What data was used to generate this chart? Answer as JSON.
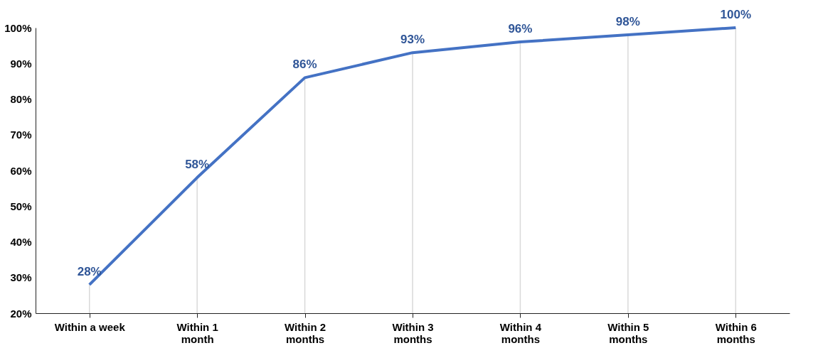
{
  "chart_data": {
    "type": "line",
    "categories": [
      "Within a week",
      "Within 1 month",
      "Within 2 months",
      "Within 3 months",
      "Within 4 months",
      "Within 5 months",
      "Within 6 months"
    ],
    "series": [
      {
        "color": "#4472c4",
        "values": [
          28,
          58,
          86,
          93,
          96,
          98,
          100
        ],
        "value_labels": [
          "28%",
          "58%",
          "86%",
          "93%",
          "96%",
          "98%",
          "100%"
        ]
      }
    ],
    "ylim": [
      20,
      100
    ],
    "yticks": [
      {
        "value": 20,
        "label": "20%"
      },
      {
        "value": 30,
        "label": "30%"
      },
      {
        "value": 40,
        "label": "40%"
      },
      {
        "value": 50,
        "label": "50%"
      },
      {
        "value": 60,
        "label": "60%"
      },
      {
        "value": 70,
        "label": "70%"
      },
      {
        "value": 80,
        "label": "80%"
      },
      {
        "value": 90,
        "label": "90%"
      },
      {
        "value": 100,
        "label": "100%"
      }
    ],
    "grid": "x",
    "marker": "none",
    "line_style": "solid"
  }
}
